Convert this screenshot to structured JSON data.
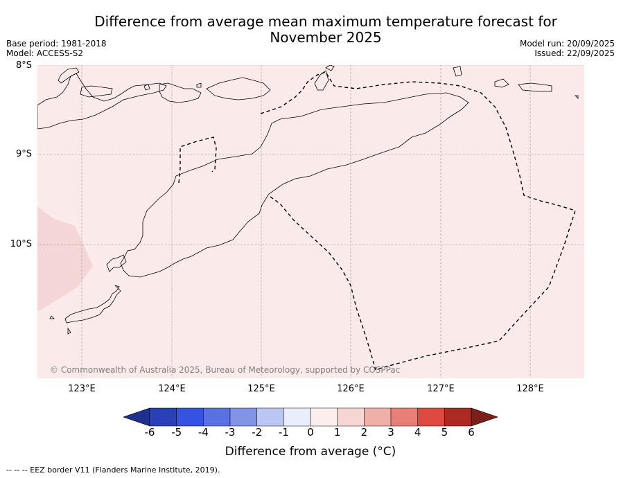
{
  "title_line1": "Difference from average mean maximum temperature forecast for",
  "title_line2": "November 2025",
  "meta_left": {
    "base_period": "Base period: 1981-2018",
    "model": "Model: ACCESS-S2"
  },
  "meta_right": {
    "model_run": "Model run: 20/09/2025",
    "issued": "Issued: 22/09/2025"
  },
  "lat_labels": [
    "8°S",
    "9°S",
    "10°S"
  ],
  "lon_labels": [
    "123°E",
    "124°E",
    "125°E",
    "126°E",
    "127°E",
    "128°E"
  ],
  "copyright": "© Commonwealth of Australia 2025, Bureau of Meteorology, supported by COSPPac",
  "colorbar": {
    "ticks": [
      "-6",
      "-5",
      "-4",
      "-3",
      "-2",
      "-1",
      "0",
      "1",
      "2",
      "3",
      "4",
      "5",
      "6"
    ],
    "colors": [
      "#1f2f8c",
      "#2a40b8",
      "#3552e2",
      "#5a71e3",
      "#8294e6",
      "#bcc6f2",
      "#eaedfb",
      "#fceeec",
      "#f5d6d2",
      "#efb0aa",
      "#e88078",
      "#de4a40",
      "#ad2a22",
      "#7a1f1a"
    ],
    "label": "Difference from average (°C)"
  },
  "map_colors": {
    "land_sea_fill": "#fbeaea",
    "anomaly_patch": "#f3d6d5",
    "coast": "#000000",
    "grid": "#888888"
  },
  "footer": "--  --  -- EEZ border V11 (Flanders Marine Institute, 2019)."
}
